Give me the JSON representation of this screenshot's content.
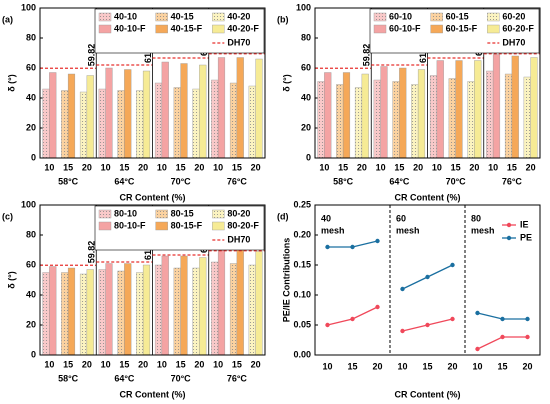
{
  "chart_data": [
    {
      "type": "bar",
      "panel": "(a)",
      "ylabel": "δ (°)",
      "xlabel": "CR Content (%)",
      "categories": [
        "58°C",
        "64°C",
        "70°C",
        "76°C"
      ],
      "subcategories": [
        "10",
        "15",
        "20"
      ],
      "ylim": [
        0,
        100
      ],
      "yticks": [
        0,
        20,
        40,
        60,
        80,
        100
      ],
      "series": [
        {
          "name": "40-10",
          "color": "#f9c9c9",
          "pattern": "dots",
          "values": [
            46,
            46,
            50,
            52
          ]
        },
        {
          "name": "40-10-F",
          "color": "#f4a3a3",
          "pattern": "solid",
          "values": [
            57,
            60,
            64,
            67
          ]
        },
        {
          "name": "40-15",
          "color": "#fbd2a0",
          "pattern": "dots",
          "values": [
            45,
            45,
            47,
            50
          ]
        },
        {
          "name": "40-15-F",
          "color": "#f5a858",
          "pattern": "solid",
          "values": [
            56,
            59,
            63,
            67
          ]
        },
        {
          "name": "40-20",
          "color": "#fbf3c0",
          "pattern": "dots",
          "values": [
            44,
            45,
            46,
            48
          ]
        },
        {
          "name": "40-20-F",
          "color": "#f6eb95",
          "pattern": "solid",
          "values": [
            55,
            58,
            62,
            66
          ]
        }
      ],
      "reference": {
        "name": "DH70",
        "color": "#e8312f",
        "values": [
          59.82,
          61.98,
          66.65,
          69.51
        ]
      }
    },
    {
      "type": "bar",
      "panel": "(b)",
      "ylabel": "δ (°)",
      "xlabel": "CR Content (%)",
      "categories": [
        "58°C",
        "64°C",
        "70°C",
        "76°C"
      ],
      "subcategories": [
        "10",
        "15",
        "20"
      ],
      "ylim": [
        0,
        100
      ],
      "yticks": [
        0,
        20,
        40,
        60,
        80,
        100
      ],
      "series": [
        {
          "name": "60-10",
          "color": "#f9c9c9",
          "pattern": "dots",
          "values": [
            51,
            52,
            55,
            58
          ]
        },
        {
          "name": "60-10-F",
          "color": "#f4a3a3",
          "pattern": "solid",
          "values": [
            57,
            61,
            65,
            69
          ]
        },
        {
          "name": "60-15",
          "color": "#fbd2a0",
          "pattern": "dots",
          "values": [
            49,
            51,
            53,
            56
          ]
        },
        {
          "name": "60-15-F",
          "color": "#f5a858",
          "pattern": "solid",
          "values": [
            57,
            60,
            65,
            68
          ]
        },
        {
          "name": "60-20",
          "color": "#fbf3c0",
          "pattern": "dots",
          "values": [
            47,
            49,
            51,
            54
          ]
        },
        {
          "name": "60-20-F",
          "color": "#f6eb95",
          "pattern": "solid",
          "values": [
            56,
            59,
            65,
            67
          ]
        }
      ],
      "reference": {
        "name": "DH70",
        "color": "#e8312f",
        "values": [
          59.82,
          61.98,
          66.65,
          69.51
        ]
      }
    },
    {
      "type": "bar",
      "panel": "(c)",
      "ylabel": "δ (°)",
      "xlabel": "CR Content (%)",
      "categories": [
        "58°C",
        "64°C",
        "70°C",
        "76°C"
      ],
      "subcategories": [
        "10",
        "15",
        "20"
      ],
      "ylim": [
        0,
        100
      ],
      "yticks": [
        0,
        20,
        40,
        60,
        80,
        100
      ],
      "series": [
        {
          "name": "80-10",
          "color": "#f9c9c9",
          "pattern": "dots",
          "values": [
            55,
            57,
            60,
            62
          ]
        },
        {
          "name": "80-10-F",
          "color": "#f4a3a3",
          "pattern": "solid",
          "values": [
            59,
            61,
            66,
            70
          ]
        },
        {
          "name": "80-15",
          "color": "#fbd2a0",
          "pattern": "dots",
          "values": [
            55,
            56,
            58,
            61
          ]
        },
        {
          "name": "80-15-F",
          "color": "#f5a858",
          "pattern": "solid",
          "values": [
            58,
            61,
            66,
            70
          ]
        },
        {
          "name": "80-20",
          "color": "#fbf3c0",
          "pattern": "dots",
          "values": [
            54,
            55,
            58,
            60
          ]
        },
        {
          "name": "80-20-F",
          "color": "#f6eb95",
          "pattern": "solid",
          "values": [
            57,
            60,
            65,
            69
          ]
        }
      ],
      "reference": {
        "name": "DH70",
        "color": "#e8312f",
        "values": [
          59.82,
          61.98,
          66.65,
          69.51
        ]
      }
    },
    {
      "type": "line",
      "panel": "(d)",
      "ylabel": "PE/IE Contributions",
      "xlabel": "CR Content (%)",
      "groups": [
        [
          "40",
          "mesh"
        ],
        [
          "60",
          "mesh"
        ],
        [
          "80",
          "mesh"
        ]
      ],
      "categories": [
        "10",
        "15",
        "20",
        "10",
        "15",
        "20",
        "10",
        "15",
        "20"
      ],
      "ylim": [
        0,
        0.25
      ],
      "yticks": [
        {
          "value": 0,
          "label": "0.00"
        },
        {
          "value": 0.05,
          "label": "0.05"
        },
        {
          "value": 0.1,
          "label": "0.10"
        },
        {
          "value": 0.15,
          "label": "0.15"
        },
        {
          "value": 0.2,
          "label": "0.20"
        },
        {
          "value": 0.25,
          "label": "0.25"
        }
      ],
      "legend": "upper right",
      "series": [
        {
          "name": "IE",
          "color": "#f0485a",
          "values": [
            0.05,
            0.06,
            0.08,
            0.04,
            0.05,
            0.06,
            0.01,
            0.03,
            0.03
          ]
        },
        {
          "name": "PE",
          "color": "#1a6fa0",
          "values": [
            0.18,
            0.18,
            0.19,
            0.11,
            0.13,
            0.15,
            0.07,
            0.06,
            0.06
          ]
        }
      ]
    }
  ]
}
